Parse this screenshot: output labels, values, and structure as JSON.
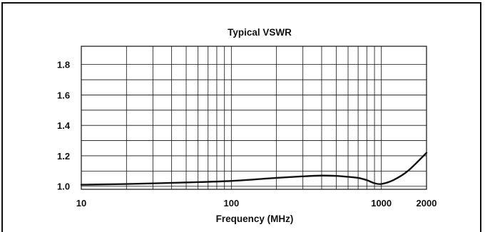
{
  "chart_data": {
    "type": "line",
    "title": "Typical VSWR",
    "xlabel": "Frequency (MHz)",
    "ylabel": "",
    "x_scale": "log",
    "xlim": [
      10,
      2000
    ],
    "ylim": [
      0.98,
      1.92
    ],
    "grid": true,
    "x_ticks": [
      10,
      100,
      1000,
      2000
    ],
    "x_tick_labels": [
      "10",
      "100",
      "1000",
      "2000"
    ],
    "y_ticks": [
      1.0,
      1.2,
      1.4,
      1.6,
      1.8
    ],
    "y_tick_labels": [
      "1.0",
      "1.2",
      "1.4",
      "1.6",
      "1.8"
    ],
    "colors": {
      "line": "#111111",
      "grid": "#111111"
    },
    "series": [
      {
        "x": [
          10,
          20,
          50,
          100,
          200,
          300,
          400,
          500,
          600,
          700,
          800,
          900,
          1000,
          1200,
          1500,
          2000
        ],
        "values": [
          1.01,
          1.015,
          1.025,
          1.035,
          1.055,
          1.065,
          1.07,
          1.068,
          1.062,
          1.055,
          1.04,
          1.02,
          1.015,
          1.04,
          1.1,
          1.22
        ]
      }
    ]
  }
}
